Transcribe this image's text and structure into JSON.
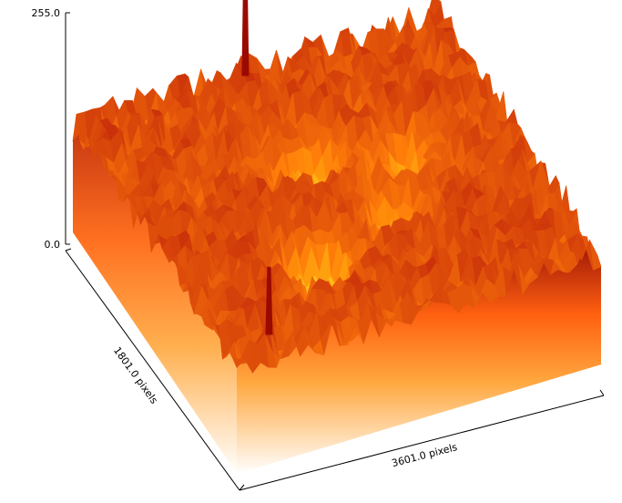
{
  "chart_data": {
    "type": "surface3d",
    "title": "",
    "z_axis": {
      "min_label": "0.0",
      "max_label": "255.0",
      "range": [
        0,
        255
      ]
    },
    "x_axis": {
      "label": "3601.0 pixels",
      "extent": 3601
    },
    "y_axis": {
      "label": "1801.0 pixels",
      "extent": 1801
    },
    "colormap": "hot",
    "features": {
      "base_level": 120,
      "spikes": [
        {
          "name": "back spike",
          "u": 0.46,
          "v": 0.02,
          "height": 255
        },
        {
          "name": "front spike",
          "u": 0.12,
          "v": 0.93,
          "height": 195
        }
      ],
      "depressions": [
        {
          "u": 0.36,
          "v": 0.7,
          "depth": 70
        },
        {
          "u": 0.5,
          "v": 0.35,
          "depth": 55
        },
        {
          "u": 0.72,
          "v": 0.42,
          "depth": 45
        },
        {
          "u": 0.6,
          "v": 0.6,
          "depth": 40
        }
      ]
    }
  },
  "colors": {
    "surface_dark": "#8b0000",
    "surface_mid": "#e8501a",
    "surface_light": "#ffcc40",
    "wall_top": "#c83010",
    "wall_bottom": "#ffffff"
  }
}
